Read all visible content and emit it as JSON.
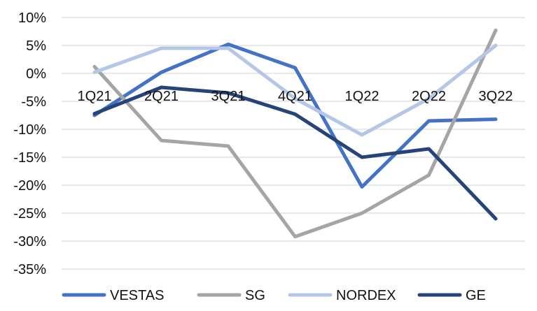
{
  "chart_data": {
    "type": "line",
    "categories": [
      "1Q21",
      "2Q21",
      "3Q21",
      "4Q21",
      "1Q22",
      "2Q22",
      "3Q22"
    ],
    "ylim": [
      -35,
      10
    ],
    "yticks": [
      10,
      5,
      0,
      -5,
      -10,
      -15,
      -20,
      -25,
      -30,
      -35
    ],
    "ytick_labels": [
      "10%",
      "5%",
      "0%",
      "-5%",
      "-10%",
      "-15%",
      "-20%",
      "-25%",
      "-30%",
      "-35%"
    ],
    "grid": true,
    "legend": "bottom",
    "series": [
      {
        "name": "VESTAS",
        "color": "#4472C4",
        "values": [
          -7.5,
          0.2,
          5.2,
          1.0,
          -20.3,
          -8.5,
          -8.2
        ]
      },
      {
        "name": "SG",
        "color": "#A5A5A5",
        "values": [
          1.2,
          -12.0,
          -13.0,
          -29.2,
          -25.0,
          -18.2,
          7.7
        ]
      },
      {
        "name": "NORDEX",
        "color": "#B4C7E7",
        "values": [
          0.2,
          4.5,
          4.5,
          -4.5,
          -11.0,
          -4.5,
          5.0
        ]
      },
      {
        "name": "GE",
        "color": "#264478",
        "values": [
          -7.2,
          -2.5,
          -3.5,
          -7.3,
          -15.0,
          -13.5,
          -26.0
        ]
      }
    ]
  }
}
